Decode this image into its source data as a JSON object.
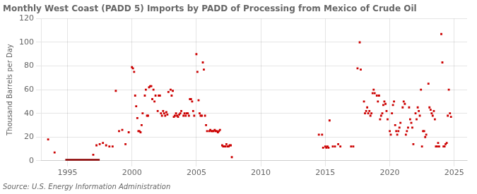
{
  "chart_data": {
    "type": "scatter",
    "title": "Monthly West Coast (PADD 5) Imports by PADD of Processing from Mexico of Crude Oil",
    "ylabel": "Thousand Barrels per Day",
    "source": "Source: U.S. Energy Information Administration",
    "xlim": [
      1993.0,
      2026.0
    ],
    "ylim": [
      0,
      120
    ],
    "xticks": [
      1995,
      2000,
      2005,
      2010,
      2015,
      2020,
      2025
    ],
    "yticks": [
      0,
      20,
      40,
      60,
      80,
      100,
      120
    ],
    "grid": true,
    "series": [
      {
        "type": "scatter",
        "color": "#cc0000",
        "marker": "square",
        "x": [
          1993.5,
          1994.0,
          1997.0,
          1997.25,
          1997.5,
          1997.75,
          1998.0,
          1998.25,
          1998.5,
          1998.75,
          1999.0,
          1999.25,
          1999.5,
          1999.75,
          2000.0,
          2000.08,
          2000.17,
          2000.25,
          2000.33,
          2000.42,
          2000.5,
          2000.58,
          2000.67,
          2000.75,
          2000.83,
          2001.0,
          2001.08,
          2001.17,
          2001.25,
          2001.33,
          2001.42,
          2001.5,
          2001.58,
          2001.67,
          2001.75,
          2001.83,
          2002.0,
          2002.08,
          2002.17,
          2002.25,
          2002.33,
          2002.42,
          2002.5,
          2002.58,
          2002.67,
          2002.75,
          2002.83,
          2003.0,
          2003.08,
          2003.17,
          2003.25,
          2003.33,
          2003.42,
          2003.5,
          2003.58,
          2003.67,
          2003.75,
          2003.83,
          2004.0,
          2004.08,
          2004.17,
          2004.25,
          2004.33,
          2004.42,
          2004.5,
          2004.58,
          2004.67,
          2004.75,
          2004.83,
          2005.0,
          2005.08,
          2005.17,
          2005.25,
          2005.33,
          2005.42,
          2005.5,
          2005.58,
          2005.67,
          2005.75,
          2005.83,
          2006.0,
          2006.08,
          2006.17,
          2006.25,
          2006.33,
          2006.42,
          2006.5,
          2006.58,
          2006.67,
          2006.75,
          2006.83,
          2007.0,
          2007.08,
          2007.17,
          2007.25,
          2007.33,
          2007.42,
          2007.5,
          2007.58,
          2007.67,
          2007.75,
          2014.5,
          2014.75,
          2014.83,
          2015.0,
          2015.08,
          2015.17,
          2015.25,
          2015.33,
          2015.58,
          2015.75,
          2016.0,
          2016.17,
          2017.0,
          2017.17,
          2017.5,
          2017.67,
          2017.75,
          2018.0,
          2018.08,
          2018.17,
          2018.25,
          2018.33,
          2018.42,
          2018.5,
          2018.58,
          2018.67,
          2018.75,
          2018.83,
          2019.0,
          2019.08,
          2019.17,
          2019.25,
          2019.33,
          2019.42,
          2019.5,
          2019.58,
          2019.67,
          2019.75,
          2019.83,
          2020.0,
          2020.08,
          2020.17,
          2020.25,
          2020.33,
          2020.42,
          2020.5,
          2020.58,
          2020.67,
          2020.75,
          2020.83,
          2021.0,
          2021.08,
          2021.17,
          2021.25,
          2021.33,
          2021.42,
          2021.5,
          2021.58,
          2021.67,
          2021.75,
          2021.83,
          2022.0,
          2022.08,
          2022.17,
          2022.25,
          2022.33,
          2022.42,
          2022.5,
          2022.58,
          2022.67,
          2022.75,
          2022.83,
          2023.0,
          2023.08,
          2023.17,
          2023.25,
          2023.33,
          2023.42,
          2023.5,
          2023.58,
          2023.67,
          2023.75,
          2023.83,
          2024.0,
          2024.08,
          2024.17,
          2024.25,
          2024.33,
          2024.42,
          2024.5,
          2024.58,
          2024.67,
          2024.75
        ],
        "values": [
          18,
          7,
          5,
          13,
          14,
          15,
          13,
          12,
          12,
          59,
          25,
          26,
          14,
          24,
          79,
          78,
          75,
          55,
          46,
          36,
          25,
          25,
          24,
          30,
          40,
          55,
          60,
          38,
          38,
          62,
          63,
          63,
          52,
          60,
          50,
          55,
          42,
          55,
          55,
          40,
          38,
          42,
          40,
          38,
          41,
          39,
          58,
          60,
          55,
          59,
          37,
          38,
          40,
          38,
          37,
          39,
          40,
          42,
          38,
          40,
          38,
          40,
          40,
          38,
          52,
          52,
          50,
          42,
          38,
          90,
          75,
          51,
          40,
          38,
          38,
          83,
          77,
          38,
          30,
          25,
          25,
          26,
          25,
          25,
          25,
          26,
          25,
          25,
          24,
          25,
          26,
          13,
          12,
          12,
          12,
          14,
          12,
          12,
          13,
          13,
          3,
          22,
          22,
          11,
          12,
          11,
          12,
          11,
          34,
          12,
          12,
          14,
          12,
          12,
          12,
          78,
          100,
          77,
          50,
          40,
          42,
          45,
          40,
          42,
          38,
          40,
          57,
          60,
          57,
          55,
          50,
          55,
          35,
          38,
          40,
          47,
          50,
          48,
          42,
          35,
          25,
          22,
          40,
          47,
          50,
          30,
          25,
          22,
          25,
          28,
          32,
          45,
          50,
          48,
          22,
          25,
          28,
          45,
          35,
          32,
          28,
          14,
          40,
          35,
          45,
          42,
          38,
          60,
          12,
          25,
          25,
          20,
          22,
          65,
          45,
          43,
          40,
          38,
          42,
          35,
          12,
          12,
          15,
          12,
          107,
          83,
          12,
          12,
          14,
          15,
          38,
          60,
          40,
          37
        ]
      },
      {
        "type": "line",
        "color": "#8b0000",
        "x": [
          1994.83,
          1997.5
        ],
        "values": [
          0,
          0
        ]
      }
    ]
  }
}
